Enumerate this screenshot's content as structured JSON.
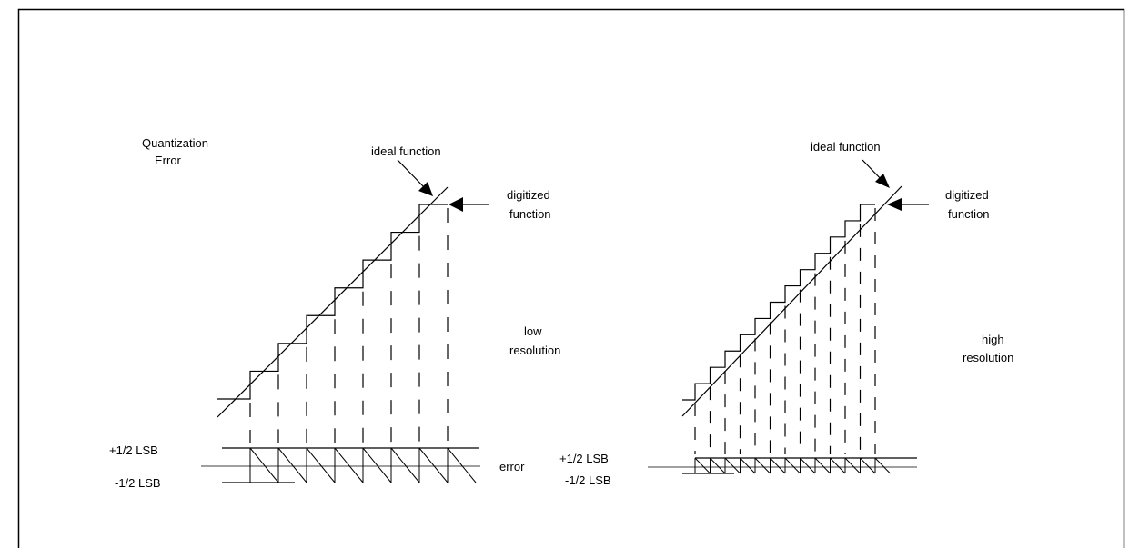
{
  "title_line1": "Quantization",
  "title_line2": "Error",
  "left_panel": {
    "ideal_label": "ideal function",
    "digitized_line1": "digitized",
    "digitized_line2": "function",
    "resolution_line1": "low",
    "resolution_line2": "resolution",
    "plus_half_lsb": "+1/2 LSB",
    "minus_half_lsb": "-1/2 LSB",
    "error_label": "error",
    "steps": 7
  },
  "right_panel": {
    "ideal_label": "ideal function",
    "digitized_line1": "digitized",
    "digitized_line2": "function",
    "resolution_line1": "high",
    "resolution_line2": "resolution",
    "plus_half_lsb": "+1/2 LSB",
    "minus_half_lsb": "-1/2 LSB",
    "steps": 12
  },
  "colors": {
    "line": "#000000",
    "background": "#ffffff"
  }
}
